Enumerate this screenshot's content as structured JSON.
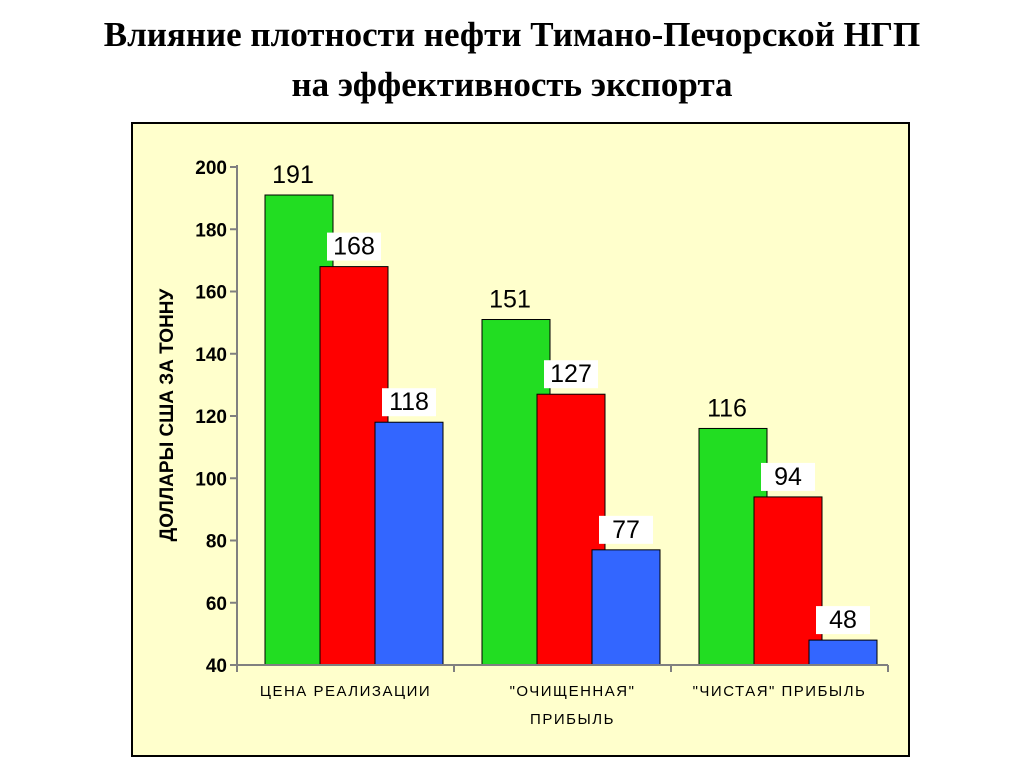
{
  "slide": {
    "title_line1": "Влияние плотности нефти Тимано-Печорской НГП",
    "title_line2": "на эффективность экспорта"
  },
  "chart_data": {
    "type": "bar",
    "title": "",
    "ylabel": "ДОЛЛАРЫ США ЗА ТОННУ",
    "xlabel": "",
    "ylim": [
      40,
      200
    ],
    "yticks": [
      40,
      60,
      80,
      100,
      120,
      140,
      160,
      180,
      200
    ],
    "grid": false,
    "legend": false,
    "categories": [
      [
        "ЦЕНА РЕАЛИЗАЦИИ"
      ],
      [
        "\"ОЧИЩЕННАЯ\"",
        "ПРИБЫЛЬ"
      ],
      [
        "\"ЧИСТАЯ\" ПРИБЫЛЬ"
      ]
    ],
    "series": [
      {
        "color": "#22dd22",
        "values": [
          191,
          151,
          116
        ]
      },
      {
        "color": "#ff0000",
        "values": [
          168,
          127,
          94
        ]
      },
      {
        "color": "#3366ff",
        "values": [
          118,
          77,
          48
        ]
      }
    ],
    "colors": {
      "plot_background": "#ffffcc",
      "bar_outline": "#000000"
    }
  }
}
